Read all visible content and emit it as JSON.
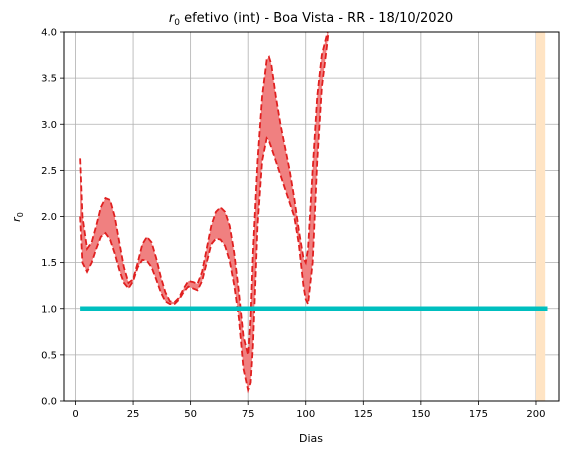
{
  "chart_data": {
    "type": "line",
    "title_prefix": "r",
    "title_sub": "0",
    "title_rest": " efetivo (int) - Boa Vista - RR - 18/10/2020",
    "xlabel": "Dias",
    "ylabel_main": "r",
    "ylabel_sub": "0",
    "xlim": [
      -5,
      210
    ],
    "ylim": [
      0,
      4
    ],
    "xticks": [
      0,
      25,
      50,
      75,
      100,
      125,
      150,
      175,
      200
    ],
    "yticks": [
      0.0,
      0.5,
      1.0,
      1.5,
      2.0,
      2.5,
      3.0,
      3.5,
      4.0
    ],
    "xtick_labels": [
      "0",
      "25",
      "50",
      "75",
      "100",
      "125",
      "150",
      "175",
      "200"
    ],
    "ytick_labels": [
      "0.0",
      "0.5",
      "1.0",
      "1.5",
      "2.0",
      "2.5",
      "3.0",
      "3.5",
      "4.0"
    ],
    "grid": true,
    "colors": {
      "band_fill": "#f08080",
      "band_edge": "#e02020",
      "reference": "#00bfbf",
      "highlight": "#ffe4c4"
    },
    "reference_line": {
      "x": [
        2,
        205
      ],
      "y": 1.0
    },
    "highlight_span": [
      200,
      204
    ],
    "series": [
      {
        "role": "upper",
        "x": [
          2,
          3,
          5,
          7,
          9,
          11,
          13,
          15,
          17,
          19,
          21,
          23,
          25,
          27,
          29,
          31,
          33,
          35,
          37,
          39,
          41,
          43,
          45,
          47,
          49,
          51,
          53,
          55,
          57,
          59,
          61,
          63,
          65,
          67,
          69,
          71,
          73,
          75,
          76,
          77,
          79,
          81,
          83,
          84,
          85,
          87,
          89,
          91,
          93,
          95,
          97,
          99,
          100,
          101,
          103,
          105,
          107,
          109,
          110
        ],
        "y": [
          2.63,
          2.0,
          1.65,
          1.72,
          1.9,
          2.1,
          2.2,
          2.18,
          2.0,
          1.72,
          1.45,
          1.28,
          1.32,
          1.5,
          1.7,
          1.78,
          1.72,
          1.55,
          1.35,
          1.18,
          1.08,
          1.07,
          1.12,
          1.22,
          1.3,
          1.29,
          1.27,
          1.4,
          1.65,
          1.9,
          2.05,
          2.1,
          2.05,
          1.9,
          1.6,
          1.18,
          0.7,
          0.5,
          0.9,
          1.6,
          2.6,
          3.3,
          3.7,
          3.73,
          3.65,
          3.3,
          3.0,
          2.75,
          2.5,
          2.2,
          1.85,
          1.55,
          1.5,
          1.65,
          2.5,
          3.3,
          3.75,
          3.95,
          4.05
        ]
      },
      {
        "role": "lower",
        "x": [
          2,
          3,
          5,
          7,
          9,
          11,
          13,
          15,
          17,
          19,
          21,
          23,
          25,
          27,
          29,
          31,
          33,
          35,
          37,
          39,
          41,
          43,
          45,
          47,
          49,
          51,
          53,
          55,
          57,
          59,
          61,
          63,
          65,
          67,
          69,
          71,
          73,
          75,
          76,
          77,
          79,
          81,
          83,
          84,
          85,
          87,
          89,
          91,
          93,
          95,
          97,
          99,
          100,
          101,
          103,
          105,
          107,
          109,
          110
        ],
        "y": [
          2.0,
          1.5,
          1.4,
          1.5,
          1.65,
          1.78,
          1.82,
          1.75,
          1.6,
          1.42,
          1.28,
          1.22,
          1.3,
          1.45,
          1.53,
          1.52,
          1.45,
          1.32,
          1.18,
          1.08,
          1.05,
          1.05,
          1.1,
          1.18,
          1.24,
          1.22,
          1.2,
          1.3,
          1.5,
          1.7,
          1.76,
          1.75,
          1.68,
          1.52,
          1.25,
          0.9,
          0.35,
          0.12,
          0.2,
          0.6,
          1.9,
          2.6,
          2.85,
          2.82,
          2.75,
          2.6,
          2.45,
          2.3,
          2.15,
          2.0,
          1.7,
          1.25,
          1.1,
          1.05,
          1.5,
          2.6,
          3.4,
          3.8,
          4.02
        ]
      }
    ]
  }
}
